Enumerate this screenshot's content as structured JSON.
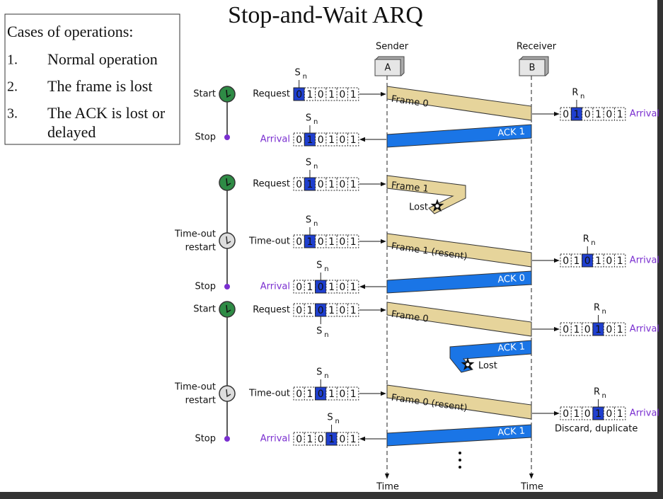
{
  "title": "Stop-and-Wait ARQ",
  "cases": {
    "heading": "Cases of operations:",
    "items": [
      {
        "num": "1.",
        "lines": [
          "Normal operation"
        ]
      },
      {
        "num": "2.",
        "lines": [
          "The frame is lost"
        ]
      },
      {
        "num": "3.",
        "lines": [
          "The ACK is lost or",
          "delayed"
        ]
      }
    ]
  },
  "stations": [
    {
      "role": "Sender",
      "letter": "A",
      "time": "Time"
    },
    {
      "role": "Receiver",
      "letter": "B",
      "time": "Time"
    }
  ],
  "timeline_labels": [
    [
      "Start"
    ],
    [
      "Stop"
    ],
    [
      "Time-out",
      "restart"
    ],
    [
      "Stop"
    ],
    [
      "Start"
    ],
    [
      "Time-out",
      "restart"
    ],
    [
      "Stop"
    ]
  ],
  "windows": [
    {
      "action": "Request",
      "var": "S",
      "sub": "n",
      "current": 0,
      "bits": [
        "0",
        "1",
        "0",
        "1",
        "0",
        "1"
      ]
    },
    {
      "action": "Arrival",
      "var": "R",
      "sub": "n",
      "current": 1,
      "bits": [
        "0",
        "1",
        "0",
        "1",
        "0",
        "1"
      ]
    },
    {
      "action": "Arrival",
      "var": "S",
      "sub": "n",
      "current": 1,
      "bits": [
        "0",
        "1",
        "0",
        "1",
        "0",
        "1"
      ]
    },
    {
      "action": "Request",
      "var": "S",
      "sub": "n",
      "current": 1,
      "bits": [
        "0",
        "1",
        "0",
        "1",
        "0",
        "1"
      ]
    },
    {
      "action": "Time-out",
      "var": "S",
      "sub": "n",
      "current": 1,
      "bits": [
        "0",
        "1",
        "0",
        "1",
        "0",
        "1"
      ]
    },
    {
      "action": "Arrival",
      "var": "R",
      "sub": "n",
      "current": 2,
      "bits": [
        "0",
        "1",
        "0",
        "1",
        "0",
        "1"
      ]
    },
    {
      "action": "Arrival",
      "var": "S",
      "sub": "n",
      "current": 2,
      "bits": [
        "0",
        "1",
        "0",
        "1",
        "0",
        "1"
      ]
    },
    {
      "action": "Request",
      "var": "S",
      "sub": "n",
      "current": 2,
      "bits": [
        "0",
        "1",
        "0",
        "1",
        "0",
        "1"
      ]
    },
    {
      "action": "Arrival",
      "var": "R",
      "sub": "n",
      "current": 3,
      "bits": [
        "0",
        "1",
        "0",
        "1",
        "0",
        "1"
      ]
    },
    {
      "action": "Time-out",
      "var": "S",
      "sub": "n",
      "current": 2,
      "bits": [
        "0",
        "1",
        "0",
        "1",
        "0",
        "1"
      ]
    },
    {
      "action": "Arrival",
      "var": "R",
      "sub": "n",
      "current": 3,
      "bits": [
        "0",
        "1",
        "0",
        "1",
        "0",
        "1"
      ]
    },
    {
      "action": "Arrival",
      "var": "S",
      "sub": "n",
      "current": 3,
      "bits": [
        "0",
        "1",
        "0",
        "1",
        "0",
        "1"
      ]
    }
  ],
  "messages": [
    "Frame 0",
    "ACK 1",
    "Frame 1",
    "Frame 1 (resent)",
    "ACK 0",
    "Frame 0",
    "ACK 1",
    "Frame 0 (resent)",
    "ACK 1"
  ],
  "notes": [
    "Lost",
    "Lost",
    "Discard, duplicate"
  ]
}
